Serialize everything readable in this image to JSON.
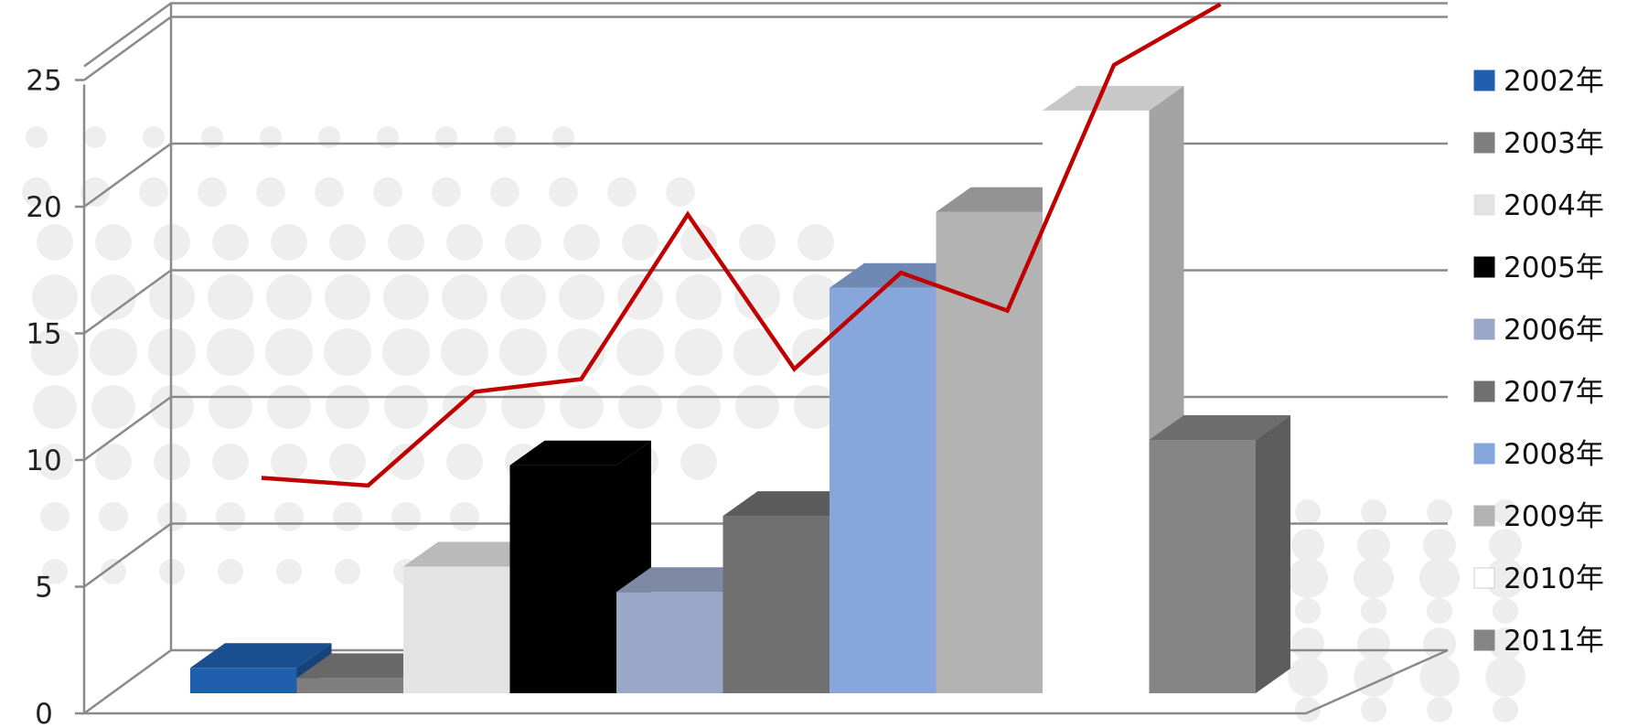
{
  "chart_data": {
    "type": "bar",
    "style": "3d-clustered-column-with-line",
    "title": "",
    "xlabel": "",
    "ylabel": "",
    "ylim": [
      0,
      25
    ],
    "yticks": [
      0,
      5,
      10,
      15,
      20,
      25
    ],
    "grid": true,
    "legend_position": "right",
    "categories": [
      "2002年",
      "2003年",
      "2004年",
      "2005年",
      "2006年",
      "2007年",
      "2008年",
      "2009年",
      "2010年",
      "2011年"
    ],
    "series": [
      {
        "type": "bar",
        "values": [
          1.0,
          0.6,
          5.0,
          9.0,
          4.0,
          7.0,
          16.0,
          19.0,
          23.0,
          10.0
        ],
        "colors": [
          "#1f5fae",
          "#7f7f7f",
          "#e3e3e3",
          "#000000",
          "#9aa8c8",
          "#707070",
          "#87a7dc",
          "#b3b3b3",
          "#ffffff",
          "#858585"
        ]
      },
      {
        "type": "line",
        "color": "#c00000",
        "values": [
          8.5,
          8.2,
          11.9,
          12.4,
          18.9,
          12.8,
          16.6,
          15.1,
          24.8,
          27.2
        ]
      }
    ]
  }
}
